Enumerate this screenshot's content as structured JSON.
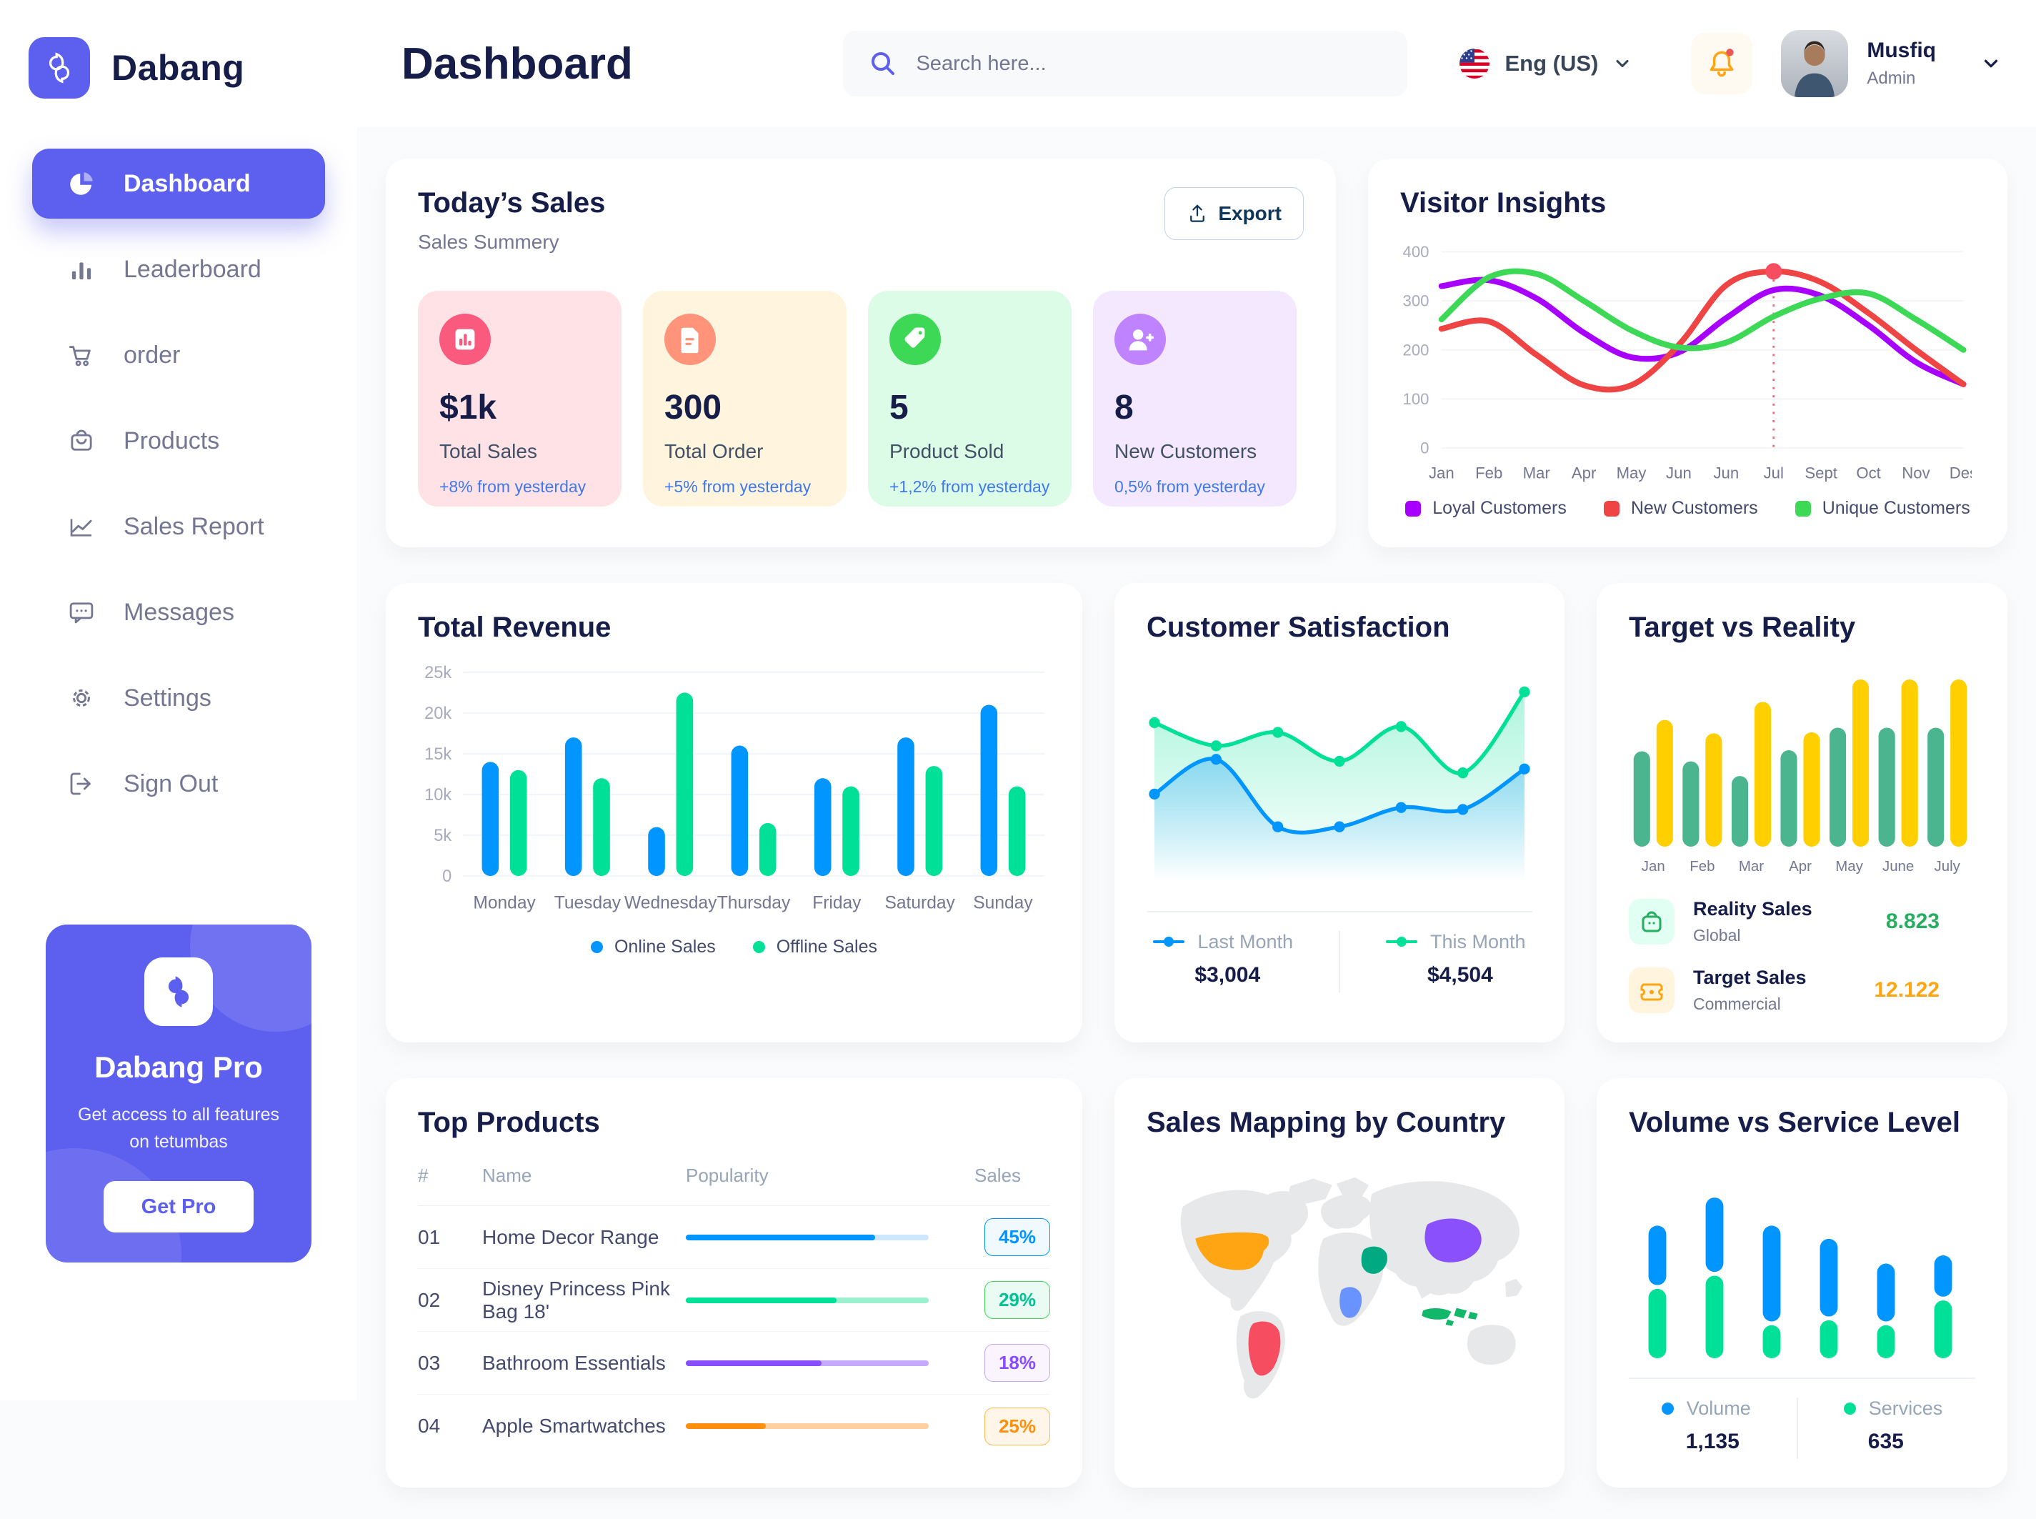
{
  "topbar": {
    "title": "Dashboard",
    "search_placeholder": "Search here...",
    "language": "Eng (US)",
    "user": {
      "name": "Musfiq",
      "role": "Admin"
    }
  },
  "sidebar": {
    "brand": "Dabang",
    "items": [
      {
        "id": "dashboard",
        "label": "Dashboard",
        "icon": "pie-chart-icon",
        "active": true
      },
      {
        "id": "leaderboard",
        "label": "Leaderboard",
        "icon": "bar-chart-icon",
        "active": false
      },
      {
        "id": "order",
        "label": "order",
        "icon": "cart-icon",
        "active": false
      },
      {
        "id": "products",
        "label": "Products",
        "icon": "bag-icon",
        "active": false
      },
      {
        "id": "sales-report",
        "label": "Sales Report",
        "icon": "line-chart-icon",
        "active": false
      },
      {
        "id": "messages",
        "label": "Messages",
        "icon": "message-icon",
        "active": false
      },
      {
        "id": "settings",
        "label": "Settings",
        "icon": "gear-icon",
        "active": false
      },
      {
        "id": "sign-out",
        "label": "Sign Out",
        "icon": "sign-out-icon",
        "active": false
      }
    ],
    "pro": {
      "title": "Dabang Pro",
      "subtitle": "Get access to all features on tetumbas",
      "button": "Get Pro"
    }
  },
  "today_sales": {
    "title": "Today’s Sales",
    "subtitle": "Sales Summery",
    "export_label": "Export",
    "cards": [
      {
        "value": "$1k",
        "label": "Total Sales",
        "delta": "+8% from yesterday",
        "bg": "#FFE2E5",
        "icon_bg": "#FA5A7D",
        "icon": "chart-icon"
      },
      {
        "value": "300",
        "label": "Total Order",
        "delta": "+5% from yesterday",
        "bg": "#FFF4DE",
        "icon_bg": "#FF947A",
        "icon": "file-icon"
      },
      {
        "value": "5",
        "label": "Product Sold",
        "delta": "+1,2% from yesterday",
        "bg": "#DCFCE7",
        "icon_bg": "#3CD856",
        "icon": "tag-icon"
      },
      {
        "value": "8",
        "label": "New Customers",
        "delta": "0,5% from yesterday",
        "bg": "#F3E8FF",
        "icon_bg": "#BF83FF",
        "icon": "user-plus-icon"
      }
    ]
  },
  "chart_data": [
    {
      "id": "visitor_insights",
      "type": "line",
      "title": "Visitor Insights",
      "x": [
        "Jan",
        "Feb",
        "Mar",
        "Apr",
        "May",
        "Jun",
        "Jun",
        "Jul",
        "Sept",
        "Oct",
        "Nov",
        "Des"
      ],
      "ylim": [
        0,
        400
      ],
      "yticks": [
        0,
        100,
        200,
        300,
        400
      ],
      "grid": true,
      "legend_position": "bottom",
      "series": [
        {
          "name": "Loyal Customers",
          "color": "#A700FF",
          "values": [
            330,
            342,
            305,
            235,
            185,
            195,
            265,
            322,
            310,
            250,
            175,
            130
          ]
        },
        {
          "name": "New Customers",
          "color": "#EF4444",
          "values": [
            243,
            258,
            190,
            128,
            128,
            210,
            332,
            360,
            338,
            275,
            200,
            130
          ]
        },
        {
          "name": "Unique Customers",
          "color": "#3CD856",
          "values": [
            262,
            348,
            355,
            300,
            240,
            205,
            215,
            268,
            305,
            315,
            262,
            200
          ]
        }
      ],
      "marker": {
        "series": "New Customers",
        "x_index": 7,
        "value": 360,
        "color": "#F64E60"
      }
    },
    {
      "id": "total_revenue",
      "type": "bar",
      "title": "Total Revenue",
      "categories": [
        "Monday",
        "Tuesday",
        "Wednesday",
        "Thursday",
        "Friday",
        "Saturday",
        "Sunday"
      ],
      "ylim": [
        0,
        25000
      ],
      "yticks": [
        0,
        5000,
        10000,
        15000,
        20000,
        25000
      ],
      "ytick_labels": [
        "0",
        "5k",
        "10k",
        "15k",
        "20k",
        "25k"
      ],
      "grid": true,
      "legend_position": "bottom",
      "series": [
        {
          "name": "Online Sales",
          "color": "#0095FF",
          "values": [
            14000,
            17000,
            6000,
            16000,
            12000,
            17000,
            21000
          ]
        },
        {
          "name": "Offline Sales",
          "color": "#00E096",
          "values": [
            13000,
            12000,
            22500,
            6500,
            11000,
            13500,
            11000
          ]
        }
      ]
    },
    {
      "id": "customer_satisfaction",
      "type": "area",
      "title": "Customer Satisfaction",
      "ylim": [
        0,
        100
      ],
      "legend_position": "bottom",
      "series": [
        {
          "name": "Last Month",
          "color": "#0095FF",
          "total": "$3,004",
          "values": [
            45,
            63,
            28,
            28,
            38,
            37,
            58
          ]
        },
        {
          "name": "This Month",
          "color": "#00E096",
          "total": "$4,504",
          "values": [
            82,
            70,
            77,
            62,
            80,
            56,
            98
          ]
        }
      ]
    },
    {
      "id": "target_vs_reality",
      "type": "bar",
      "title": "Target vs Reality",
      "categories": [
        "Jan",
        "Feb",
        "Mar",
        "Apr",
        "May",
        "June",
        "July"
      ],
      "ylim": [
        0,
        15
      ],
      "legend_position": "bottom",
      "series": [
        {
          "name": "Reality Sales",
          "subtitle": "Global",
          "color": "#4AB58E",
          "value_label": "8.823",
          "value_color": "#27AE60",
          "icon": "bag-icon",
          "icon_bg": "#E2FFF3",
          "values": [
            8.5,
            7.6,
            6.3,
            8.6,
            10.6,
            10.6,
            10.6
          ]
        },
        {
          "name": "Target Sales",
          "subtitle": "Commercial",
          "color": "#FFCF00",
          "value_label": "12.122",
          "value_color": "#FFA412",
          "icon": "ticket-icon",
          "icon_bg": "#FFF4DE",
          "values": [
            11.3,
            10.1,
            12.9,
            10.2,
            14.9,
            14.9,
            14.9
          ]
        }
      ]
    },
    {
      "id": "top_products",
      "type": "table",
      "title": "Top Products",
      "columns": [
        "#",
        "Name",
        "Popularity",
        "Sales"
      ],
      "rows": [
        {
          "rank": "01",
          "name": "Home Decor Range",
          "popularity": 78,
          "bar_color": "#0095FF",
          "track_color": "#CDE7FF",
          "sales": "45%",
          "badge_text": "#0095FF",
          "badge_bg": "#F0F9FF",
          "badge_border": "#0095FF"
        },
        {
          "rank": "02",
          "name": "Disney Princess Pink Bag 18'",
          "popularity": 62,
          "bar_color": "#00E096",
          "track_color": "#9BF0CE",
          "sales": "29%",
          "badge_text": "#00C292",
          "badge_bg": "#EAFBF4",
          "badge_border": "#3CD856"
        },
        {
          "rank": "03",
          "name": "Bathroom Essentials",
          "popularity": 56,
          "bar_color": "#884DFF",
          "track_color": "#C5A8FF",
          "sales": "18%",
          "badge_text": "#884DFF",
          "badge_bg": "#F9F4FF",
          "badge_border": "#C5A8FF"
        },
        {
          "rank": "04",
          "name": "Apple Smartwatches",
          "popularity": 33,
          "bar_color": "#FF8F0D",
          "track_color": "#FFD09F",
          "sales": "25%",
          "badge_text": "#FF8F0D",
          "badge_bg": "#FFF6E9",
          "badge_border": "#FFBA57"
        }
      ]
    },
    {
      "id": "sales_mapping",
      "type": "map",
      "title": "Sales Mapping by Country",
      "countries": [
        {
          "key": "us",
          "name": "United States",
          "color": "#FFA412"
        },
        {
          "key": "brazil",
          "name": "Brazil",
          "color": "#F64E60"
        },
        {
          "key": "saudi",
          "name": "Saudi Arabia",
          "color": "#00A982"
        },
        {
          "key": "congo",
          "name": "DR Congo",
          "color": "#6993FF"
        },
        {
          "key": "china",
          "name": "China",
          "color": "#8950FC"
        },
        {
          "key": "indonesia",
          "name": "Indonesia",
          "color": "#12B76A"
        }
      ]
    },
    {
      "id": "volume_vs_service",
      "type": "stacked-bar",
      "title": "Volume vs Service Level",
      "ylim": [
        0,
        100
      ],
      "legend_position": "bottom",
      "series": [
        {
          "name": "Volume",
          "color": "#0095FF",
          "total": "1,135",
          "values": [
            36,
            45,
            58,
            47,
            35,
            25
          ]
        },
        {
          "name": "Services",
          "color": "#00E096",
          "total": "635",
          "values": [
            42,
            50,
            20,
            23,
            20,
            35
          ]
        }
      ]
    }
  ]
}
